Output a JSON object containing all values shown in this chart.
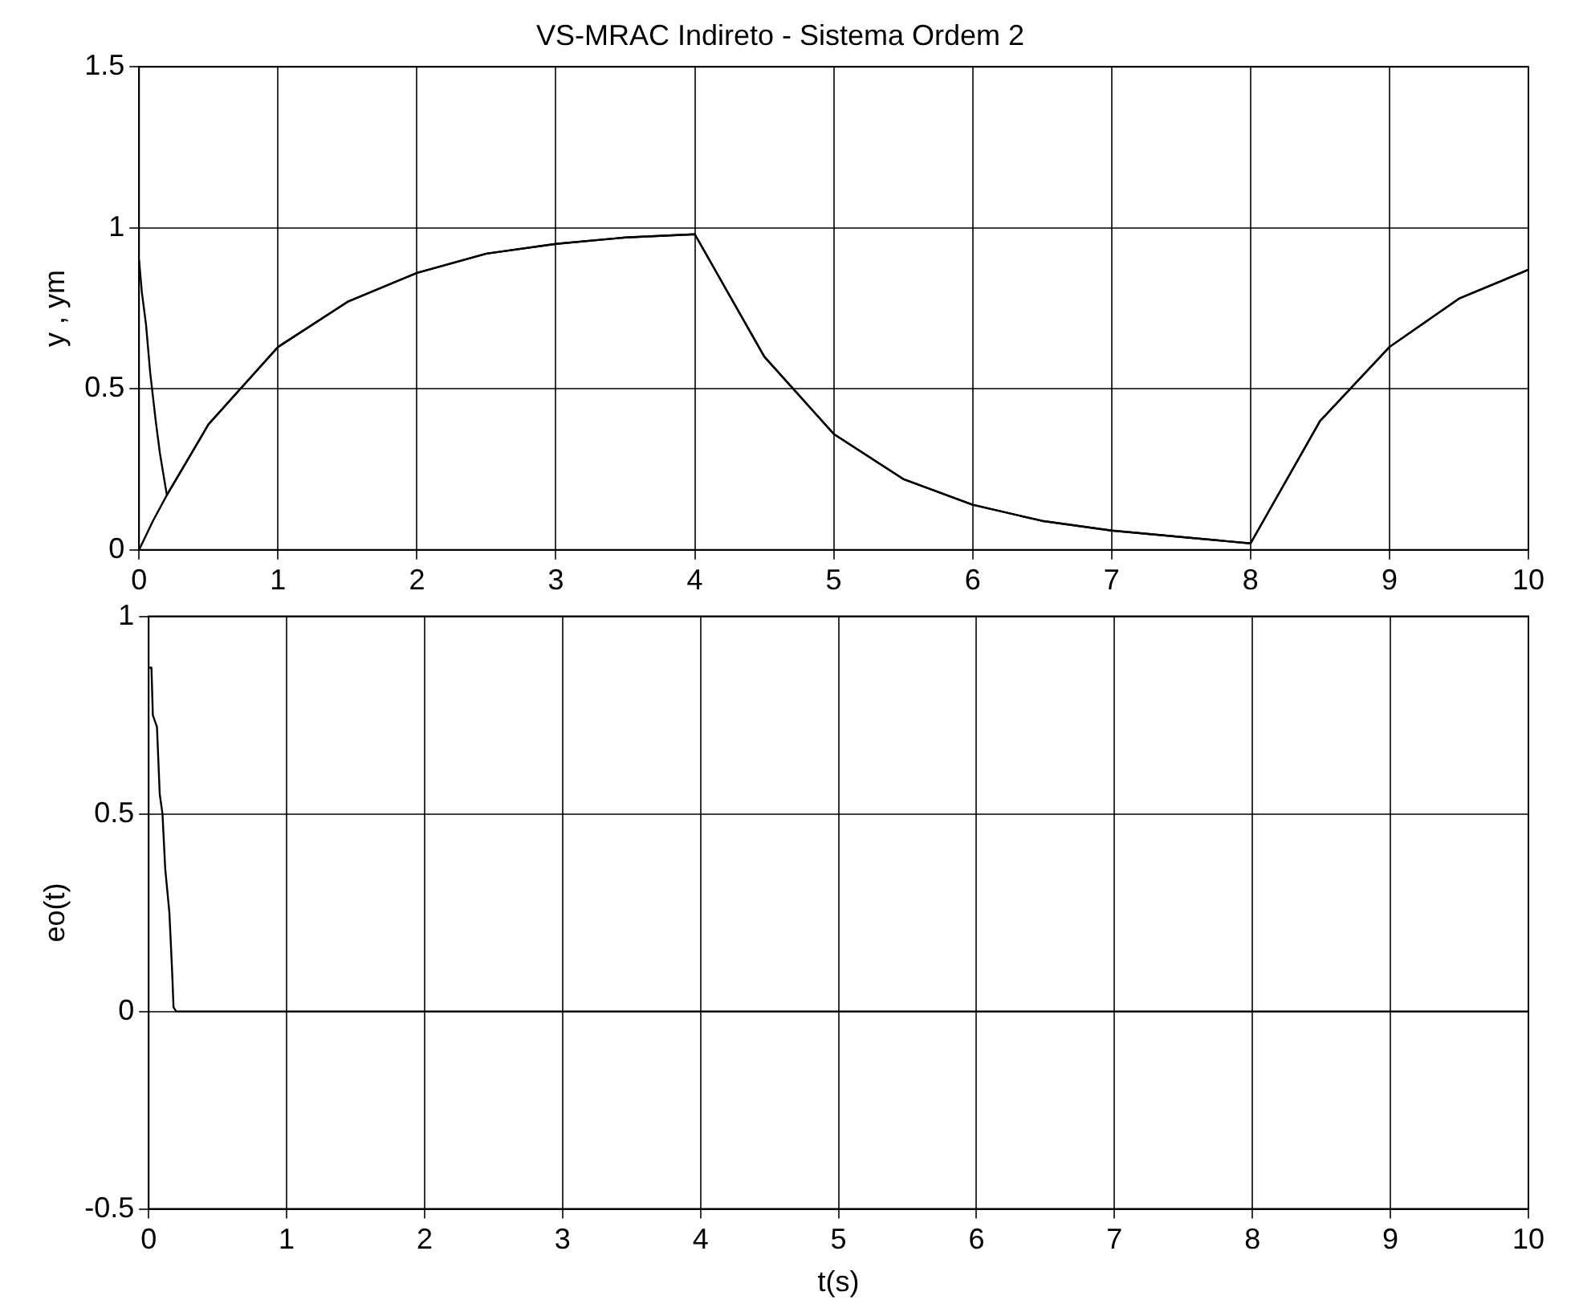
{
  "chart_data": [
    {
      "type": "line",
      "title": "VS-MRAC Indireto - Sistema Ordem 2",
      "ylabel": "y , ym",
      "xlim": [
        0,
        10
      ],
      "xticks": [
        0,
        1,
        2,
        3,
        4,
        5,
        6,
        7,
        8,
        9,
        10
      ],
      "ylim": [
        0,
        1.5
      ],
      "yticks": [
        0,
        0.5,
        1,
        1.5
      ],
      "grid": true,
      "legend": false,
      "marker": "none",
      "line_style": "solid",
      "series": [
        {
          "color": "#000000",
          "x": [
            0,
            0.02,
            0.05,
            0.08,
            0.12,
            0.15,
            0.2,
            0.5,
            1,
            1.5,
            2,
            2.5,
            3,
            3.5,
            4,
            4.5,
            5,
            5.5,
            6,
            6.5,
            7,
            7.5,
            8,
            8.5,
            9,
            9.5,
            10
          ],
          "values": [
            0.9,
            0.8,
            0.7,
            0.55,
            0.4,
            0.3,
            0.17,
            0.39,
            0.63,
            0.77,
            0.86,
            0.92,
            0.95,
            0.97,
            0.98,
            0.6,
            0.36,
            0.22,
            0.14,
            0.09,
            0.06,
            0.04,
            0.02,
            0.4,
            0.63,
            0.78,
            0.87
          ]
        },
        {
          "color": "#000000",
          "x": [
            0,
            0.1,
            0.2,
            0.5,
            1,
            1.5,
            2,
            2.5,
            3,
            3.5,
            4,
            4.5,
            5,
            5.5,
            6,
            6.5,
            7,
            7.5,
            8,
            8.5,
            9,
            9.5,
            10
          ],
          "values": [
            0,
            0.09,
            0.17,
            0.39,
            0.63,
            0.77,
            0.86,
            0.92,
            0.95,
            0.97,
            0.98,
            0.6,
            0.36,
            0.22,
            0.14,
            0.09,
            0.06,
            0.04,
            0.02,
            0.4,
            0.63,
            0.78,
            0.87
          ]
        }
      ]
    },
    {
      "type": "line",
      "xlabel": "t(s)",
      "ylabel": "eo(t)",
      "xlim": [
        0,
        10
      ],
      "xticks": [
        0,
        1,
        2,
        3,
        4,
        5,
        6,
        7,
        8,
        9,
        10
      ],
      "ylim": [
        -0.5,
        1
      ],
      "yticks": [
        -0.5,
        0,
        0.5,
        1
      ],
      "grid": true,
      "legend": false,
      "marker": "none",
      "line_style": "solid",
      "series": [
        {
          "color": "#000000",
          "x": [
            0,
            0.02,
            0.03,
            0.06,
            0.08,
            0.1,
            0.12,
            0.15,
            0.17,
            0.18,
            0.2,
            1,
            2,
            3,
            4,
            5,
            6,
            7,
            8,
            9,
            10
          ],
          "values": [
            0.87,
            0.87,
            0.75,
            0.72,
            0.55,
            0.5,
            0.36,
            0.25,
            0.1,
            0.01,
            0,
            0,
            0,
            0,
            0,
            0,
            0,
            0,
            0,
            0,
            0
          ]
        }
      ]
    }
  ]
}
